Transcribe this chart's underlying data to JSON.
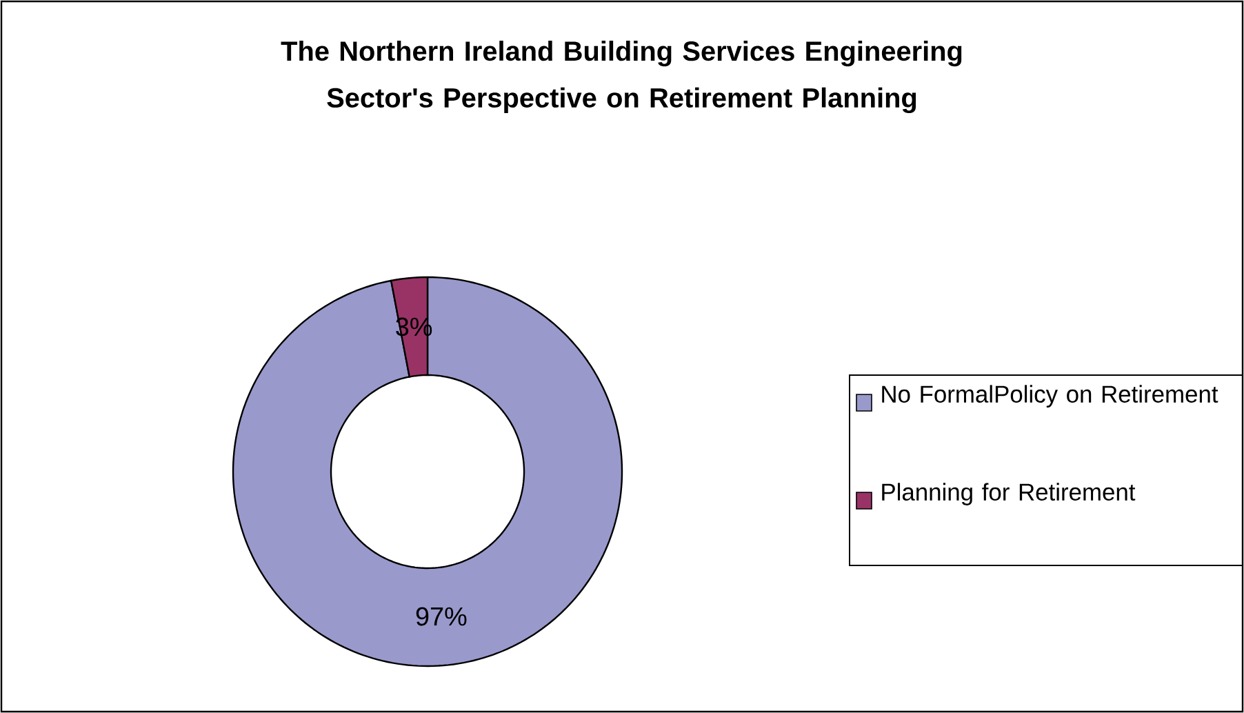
{
  "chart_data": {
    "type": "donut",
    "title": "The Northern Ireland Building Services Engineering Sector's Perspective on Retirement Planning",
    "categories": [
      "No FormalPolicy on Retirement",
      "Planning for Retirement"
    ],
    "values": [
      97,
      3
    ],
    "colors": [
      "#9999cc",
      "#993366"
    ],
    "value_labels": [
      "97%",
      "3%"
    ],
    "legend": "right"
  }
}
